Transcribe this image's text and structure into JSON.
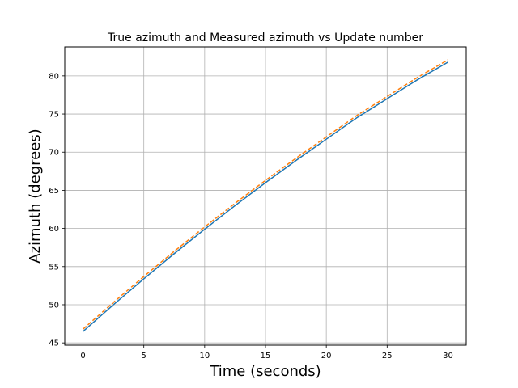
{
  "chart_data": {
    "type": "line",
    "title": "True azimuth and Measured azimuth vs Update number",
    "xlabel": "Time (seconds)",
    "ylabel": "Azimuth (degrees)",
    "xlim": [
      -1.5,
      31.5
    ],
    "ylim": [
      44.7,
      83.8
    ],
    "xticks": [
      0,
      5,
      10,
      15,
      20,
      25,
      30
    ],
    "yticks": [
      45,
      50,
      55,
      60,
      65,
      70,
      75,
      80
    ],
    "grid": true,
    "series": [
      {
        "style": "solid",
        "color": "#1f77b4",
        "x": [
          0,
          2.5,
          5,
          7.5,
          10,
          12.5,
          15,
          17.5,
          20,
          22.5,
          25,
          27.5,
          30
        ],
        "y": [
          46.5,
          50.0,
          53.4,
          56.7,
          59.9,
          63.0,
          66.0,
          68.9,
          71.7,
          74.5,
          77.0,
          79.5,
          81.8
        ]
      },
      {
        "style": "dashed",
        "color": "#ff7f0e",
        "x": [
          0,
          2.5,
          5,
          7.5,
          10,
          12.5,
          15,
          17.5,
          20,
          22.5,
          25,
          27.5,
          30
        ],
        "y": [
          46.8,
          50.3,
          53.7,
          57.0,
          60.2,
          63.3,
          66.3,
          69.2,
          72.0,
          74.8,
          77.3,
          79.8,
          82.1
        ]
      }
    ]
  }
}
